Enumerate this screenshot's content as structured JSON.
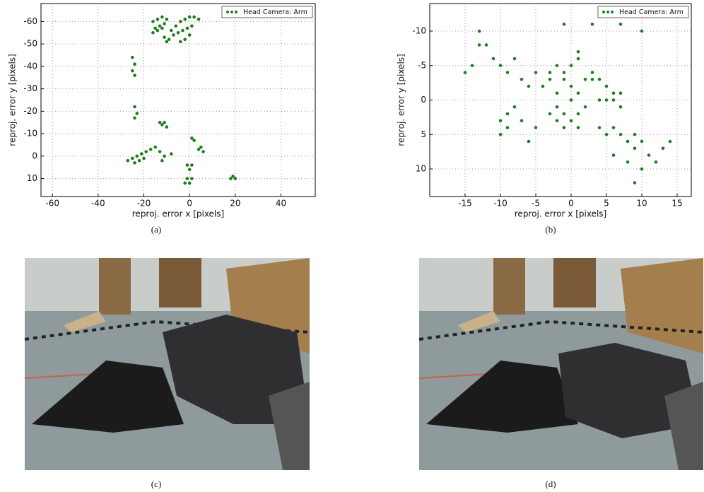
{
  "chart_data": [
    {
      "type": "scatter",
      "xlabel": "reproj. error x [pixels]",
      "ylabel": "reproj. error y [pixels]",
      "xlim": [
        -65,
        55
      ],
      "ylim": [
        -68,
        18
      ],
      "y_inverted": true,
      "xticks": [
        -60,
        -40,
        -20,
        0,
        20,
        40
      ],
      "yticks": [
        -60,
        -50,
        -40,
        -30,
        -20,
        -10,
        0,
        10
      ],
      "grid": true,
      "legend": "upper right",
      "series": [
        {
          "name": "Head Camera: Arm",
          "color": "#1e7d1e",
          "x": [
            -16,
            -14,
            -12,
            -10,
            -15,
            -13,
            -11,
            -16,
            -14,
            -12,
            -11,
            -10,
            -9,
            -8,
            -6,
            -4,
            -2,
            0,
            2,
            4,
            -7,
            -5,
            -3,
            -1,
            1,
            -4,
            -2,
            0,
            -25,
            -24,
            -25,
            -24,
            -24,
            -23,
            -24,
            -13,
            -11,
            -12,
            -10,
            -27,
            -25,
            -23,
            -21,
            -19,
            -17,
            -24,
            -22,
            -20,
            -15,
            -13,
            -11,
            -12,
            -8,
            1,
            2,
            4,
            6,
            5,
            -1,
            0,
            1,
            -1,
            0,
            1,
            -2,
            19,
            20,
            18
          ],
          "values": [
            -60,
            -61,
            -62,
            -61,
            -57,
            -58,
            -59,
            -55,
            -56,
            -57,
            -53,
            -51,
            -52,
            -56,
            -58,
            -60,
            -61,
            -62,
            -62,
            -61,
            -54,
            -55,
            -56,
            -57,
            -58,
            -51,
            -52,
            -54,
            -44,
            -41,
            -38,
            -36,
            -22,
            -19,
            -17,
            -15,
            -15,
            -14,
            -13,
            2,
            1,
            0,
            -1,
            -2,
            -3,
            3,
            2,
            1,
            -4,
            -2,
            0,
            2,
            -1,
            -8,
            -7,
            -3,
            -2,
            -4,
            4,
            6,
            4,
            10,
            12,
            10,
            12,
            9,
            10,
            10
          ]
        }
      ]
    },
    {
      "type": "scatter",
      "xlabel": "reproj. error x [pixels]",
      "ylabel": "reproj. error y [pixels]",
      "xlim": [
        -20,
        17
      ],
      "ylim": [
        -14,
        14
      ],
      "y_inverted": true,
      "xticks": [
        -15,
        -10,
        -5,
        0,
        5,
        10,
        15
      ],
      "yticks": [
        -10,
        -5,
        0,
        5,
        10
      ],
      "grid": true,
      "legend": "upper right",
      "series": [
        {
          "name": "Head Camera: Arm",
          "color": "#1e7d1e",
          "x": [
            -15,
            -13,
            -12,
            -11,
            -10,
            -9,
            -8,
            -7,
            -6,
            -5,
            -10,
            -10,
            -9,
            -9,
            -8,
            -7,
            -6,
            -5,
            -4,
            -3,
            -2,
            -1,
            0,
            -2,
            -1,
            1,
            2,
            -3,
            0,
            1,
            -2,
            -1,
            0,
            1,
            -3,
            -1,
            2,
            -2,
            0,
            1,
            3,
            4,
            5,
            3,
            5,
            6,
            7,
            4,
            6,
            7,
            4,
            5,
            6,
            7,
            8,
            9,
            10,
            9,
            11,
            12,
            13,
            14,
            10,
            8,
            6,
            9,
            -1,
            3,
            7,
            10,
            -13,
            -14,
            1
          ],
          "values": [
            -4,
            -10,
            -8,
            -6,
            -5,
            -4,
            -6,
            -3,
            -2,
            -4,
            3,
            5,
            4,
            2,
            1,
            3,
            6,
            4,
            -2,
            -4,
            -5,
            -3,
            -2,
            -1,
            -4,
            -6,
            -3,
            -3,
            -5,
            -1,
            1,
            2,
            3,
            2,
            2,
            4,
            1,
            3,
            0,
            4,
            -4,
            -3,
            -2,
            -3,
            0,
            -1,
            1,
            0,
            0,
            -1,
            4,
            5,
            4,
            5,
            6,
            5,
            6,
            7,
            8,
            9,
            7,
            6,
            10,
            9,
            8,
            12,
            -11,
            -11,
            -11,
            -10,
            -8,
            -5,
            -7
          ]
        }
      ]
    }
  ],
  "captions": [
    "(a)",
    "(b)",
    "(c)",
    "(d)"
  ]
}
